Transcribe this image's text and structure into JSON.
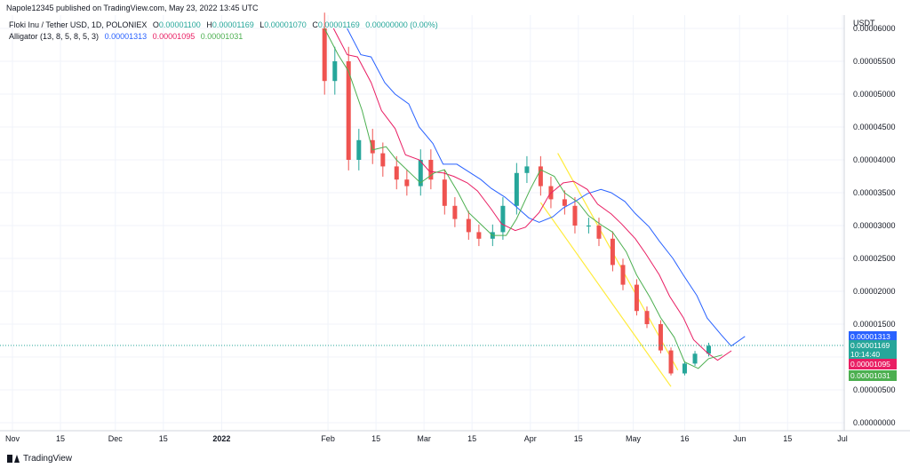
{
  "header": {
    "published": "Napole12345 published on TradingView.com, May 23, 2022 13:45 UTC",
    "symbol": "Floki Inu / Tether USD, 1D, POLONIEX",
    "o_label": "O",
    "o_value": "0.00001100",
    "h_label": "H",
    "h_value": "0.00001169",
    "l_label": "L",
    "l_value": "0.00001070",
    "c_label": "C",
    "c_value": "0.00001169",
    "change": "0.00000000 (0.00%)",
    "indicator": "Alligator (13, 8, 5, 8, 5, 3)",
    "jaw_value": "0.00001313",
    "teeth_value": "0.00001095",
    "lips_value": "0.00001031"
  },
  "price_axis": {
    "currency": "USDT",
    "ticks": [
      "0.00000000",
      "0.00000500",
      "0.00001000",
      "0.00001500",
      "0.00002000",
      "0.00002500",
      "0.00003000",
      "0.00003500",
      "0.00004000",
      "0.00004500",
      "0.00005000",
      "0.00005500",
      "0.00006000"
    ]
  },
  "time_axis": {
    "ticks": [
      "Nov",
      "15",
      "Dec",
      "15",
      "2022",
      "Feb",
      "15",
      "Mar",
      "15",
      "Apr",
      "15",
      "May",
      "16",
      "Jun",
      "15",
      "Jul"
    ]
  },
  "price_tags": {
    "jaw": "0.00001313",
    "last": "0.00001169",
    "countdown": "10:14:40",
    "teeth": "0.00001095",
    "lips": "0.00001031"
  },
  "colors": {
    "up": "#26a69a",
    "down": "#ef5350",
    "jaw": "#2962ff",
    "teeth": "#e91e63",
    "lips": "#4caf50",
    "channel": "#ffeb3b"
  },
  "brand": "TradingView",
  "chart_data": {
    "type": "candlestick",
    "ylim": [
      0,
      6e-05
    ],
    "ohlc_close_trend": {
      "dates": [
        "2022-01-27",
        "2022-01-31",
        "2022-02-03",
        "2022-02-07",
        "2022-02-10",
        "2022-02-14",
        "2022-02-17",
        "2022-02-21",
        "2022-02-24",
        "2022-02-28",
        "2022-03-03",
        "2022-03-07",
        "2022-03-10",
        "2022-03-14",
        "2022-03-17",
        "2022-03-21",
        "2022-03-24",
        "2022-03-28",
        "2022-03-31",
        "2022-04-04",
        "2022-04-07",
        "2022-04-11",
        "2022-04-14",
        "2022-04-18",
        "2022-04-21",
        "2022-04-25",
        "2022-04-28",
        "2022-05-02",
        "2022-05-05",
        "2022-05-09",
        "2022-05-12",
        "2022-05-16",
        "2022-05-19",
        "2022-05-23"
      ],
      "close": [
        6e-05,
        5.2e-05,
        5.5e-05,
        4e-05,
        4.3e-05,
        4.1e-05,
        3.9e-05,
        3.7e-05,
        3.6e-05,
        4e-05,
        3.7e-05,
        3.3e-05,
        3.1e-05,
        2.9e-05,
        2.8e-05,
        2.9e-05,
        3.3e-05,
        3.8e-05,
        3.9e-05,
        3.6e-05,
        3.4e-05,
        3.3e-05,
        3e-05,
        3e-05,
        2.8e-05,
        2.4e-05,
        2.1e-05,
        1.7e-05,
        1.5e-05,
        1.1e-05,
        7.5e-06,
        9e-06,
        1.05e-05,
        1.17e-05
      ]
    },
    "alligator": {
      "jaw_last": 1.313e-05,
      "teeth_last": 1.095e-05,
      "lips_last": 1.031e-05
    }
  }
}
